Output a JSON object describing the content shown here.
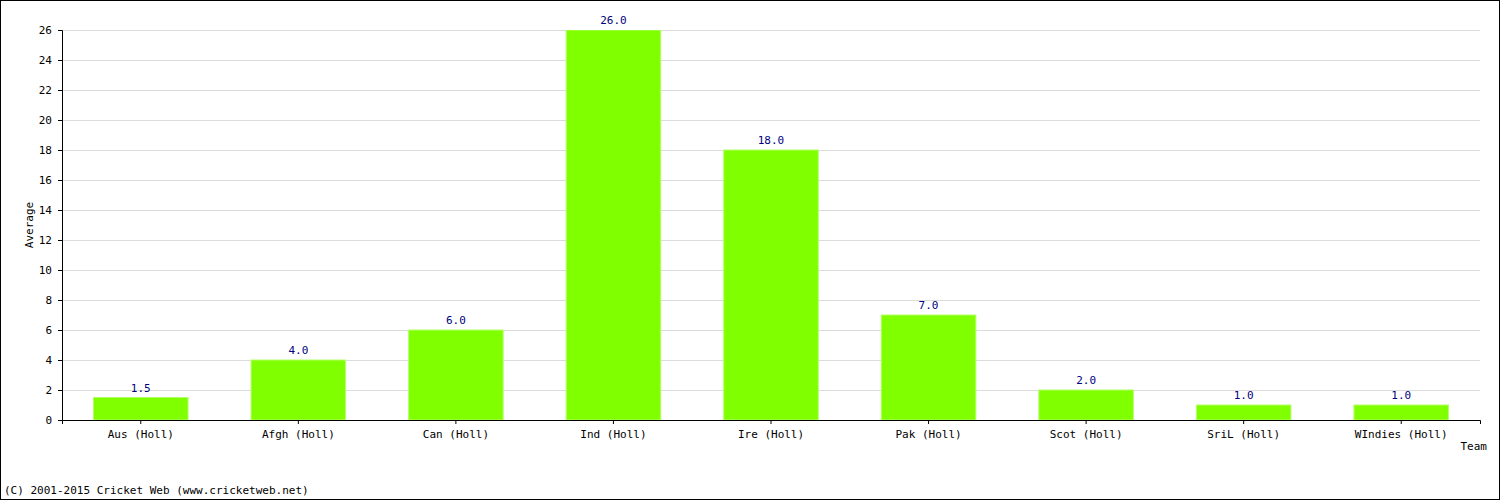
{
  "chart_data": {
    "type": "bar",
    "categories": [
      "Aus (Holl)",
      "Afgh (Holl)",
      "Can (Holl)",
      "Ind (Holl)",
      "Ire (Holl)",
      "Pak (Holl)",
      "Scot (Holl)",
      "SriL (Holl)",
      "WIndies (Holl)"
    ],
    "values": [
      1.5,
      4,
      6,
      26,
      18,
      7,
      2,
      1,
      1
    ],
    "value_labels": [
      "1.5",
      "4.0",
      "6.0",
      "26.0",
      "18.0",
      "7.0",
      "2.0",
      "1.0",
      "1.0"
    ],
    "data_labels": true,
    "color": "#80ff00",
    "x_label": "Team",
    "y_label": "Average",
    "ylim": [
      0,
      26
    ],
    "yticks": [
      0,
      2,
      4,
      6,
      8,
      10,
      12,
      14,
      16,
      18,
      20,
      22,
      24,
      26
    ],
    "grid": true,
    "annotations": [
      "(C) 2001-2015 Cricket Web (www.cricketweb.net)"
    ]
  }
}
